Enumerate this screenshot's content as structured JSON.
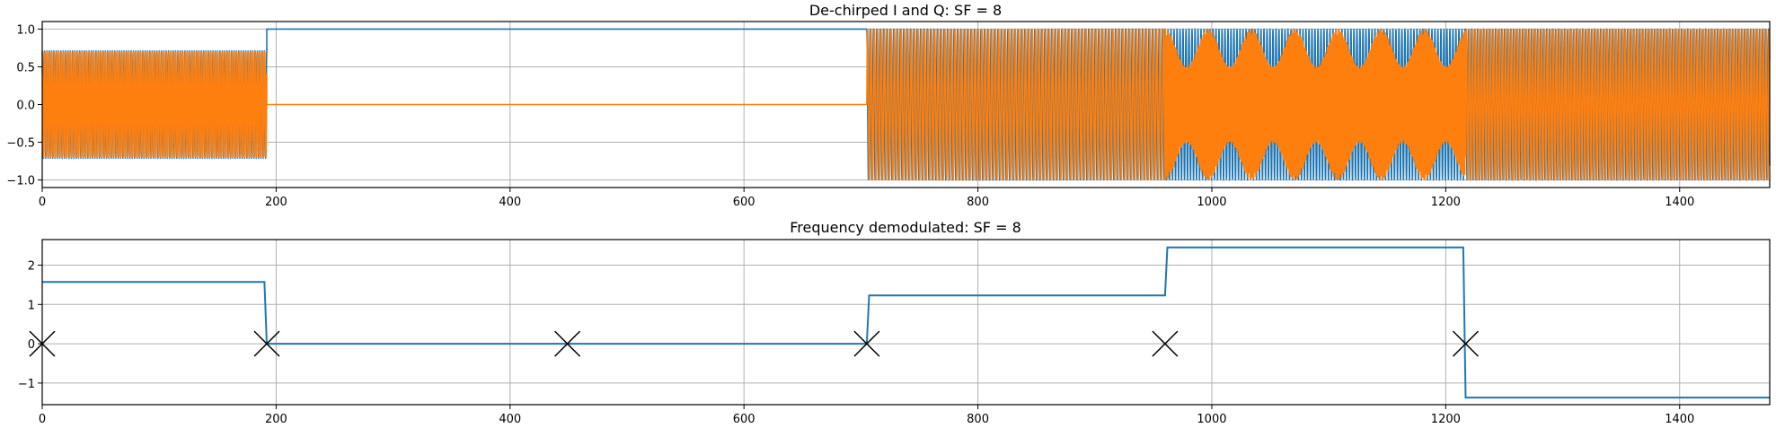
{
  "chart_data": [
    {
      "type": "line",
      "title": "De-chirped I and Q: SF = 8",
      "xlabel": "",
      "ylabel": "",
      "xlim": [
        0,
        1477
      ],
      "ylim": [
        -1.1,
        1.1
      ],
      "grid": true,
      "xticks": [
        0,
        200,
        400,
        600,
        800,
        1000,
        1200,
        1400
      ],
      "xtick_labels": [
        "0",
        "200",
        "400",
        "600",
        "800",
        "1000",
        "1200",
        "1400"
      ],
      "yticks": [
        1.0,
        0.5,
        0.0,
        -0.5,
        -1.0
      ],
      "ytick_labels": [
        "1.0",
        "0.5",
        "0.0",
        "−0.5",
        "−1.0"
      ],
      "series": [
        {
          "color": "#1f77b4"
        },
        {
          "color": "#ff7f0e"
        }
      ],
      "segments": [
        {
          "x": [
            0,
            192
          ],
          "I": "oscillating",
          "Q": "oscillating",
          "amplitude": 0.71
        },
        {
          "x": [
            192,
            705
          ],
          "I": 1.0,
          "Q": 0.0
        },
        {
          "x": [
            705,
            960
          ],
          "I": "oscillating",
          "Q": "oscillating",
          "amplitude": 1.0
        },
        {
          "x": [
            960,
            1217
          ],
          "I": "oscillating",
          "Q": "oscillating",
          "amplitude": 1.0
        },
        {
          "x": [
            1217,
            1477
          ],
          "I": "oscillating",
          "Q": "oscillating",
          "amplitude": 1.0
        }
      ]
    },
    {
      "type": "line",
      "title": "Frequency demodulated: SF = 8",
      "xlabel": "",
      "ylabel": "",
      "xlim": [
        0,
        1477
      ],
      "ylim": [
        -1.55,
        2.65
      ],
      "grid": true,
      "xticks": [
        0,
        200,
        400,
        600,
        800,
        1000,
        1200,
        1400
      ],
      "xtick_labels": [
        "0",
        "200",
        "400",
        "600",
        "800",
        "1000",
        "1200",
        "1400"
      ],
      "yticks": [
        2,
        1,
        0,
        -1
      ],
      "ytick_labels": [
        "2",
        "1",
        "0",
        "−1"
      ],
      "series": [
        {
          "color": "#1f77b4",
          "x": [
            0,
            190,
            192,
            705,
            707,
            960,
            962,
            1215,
            1217,
            1477
          ],
          "y": [
            1.57,
            1.57,
            0.0,
            0.0,
            1.23,
            1.23,
            2.45,
            2.45,
            -1.37,
            -1.37
          ]
        }
      ],
      "markers": {
        "symbol": "x",
        "color": "#000000",
        "x": [
          0,
          192,
          449,
          705,
          960,
          1217
        ],
        "y": [
          0,
          0,
          0,
          0,
          0,
          0
        ]
      }
    }
  ]
}
